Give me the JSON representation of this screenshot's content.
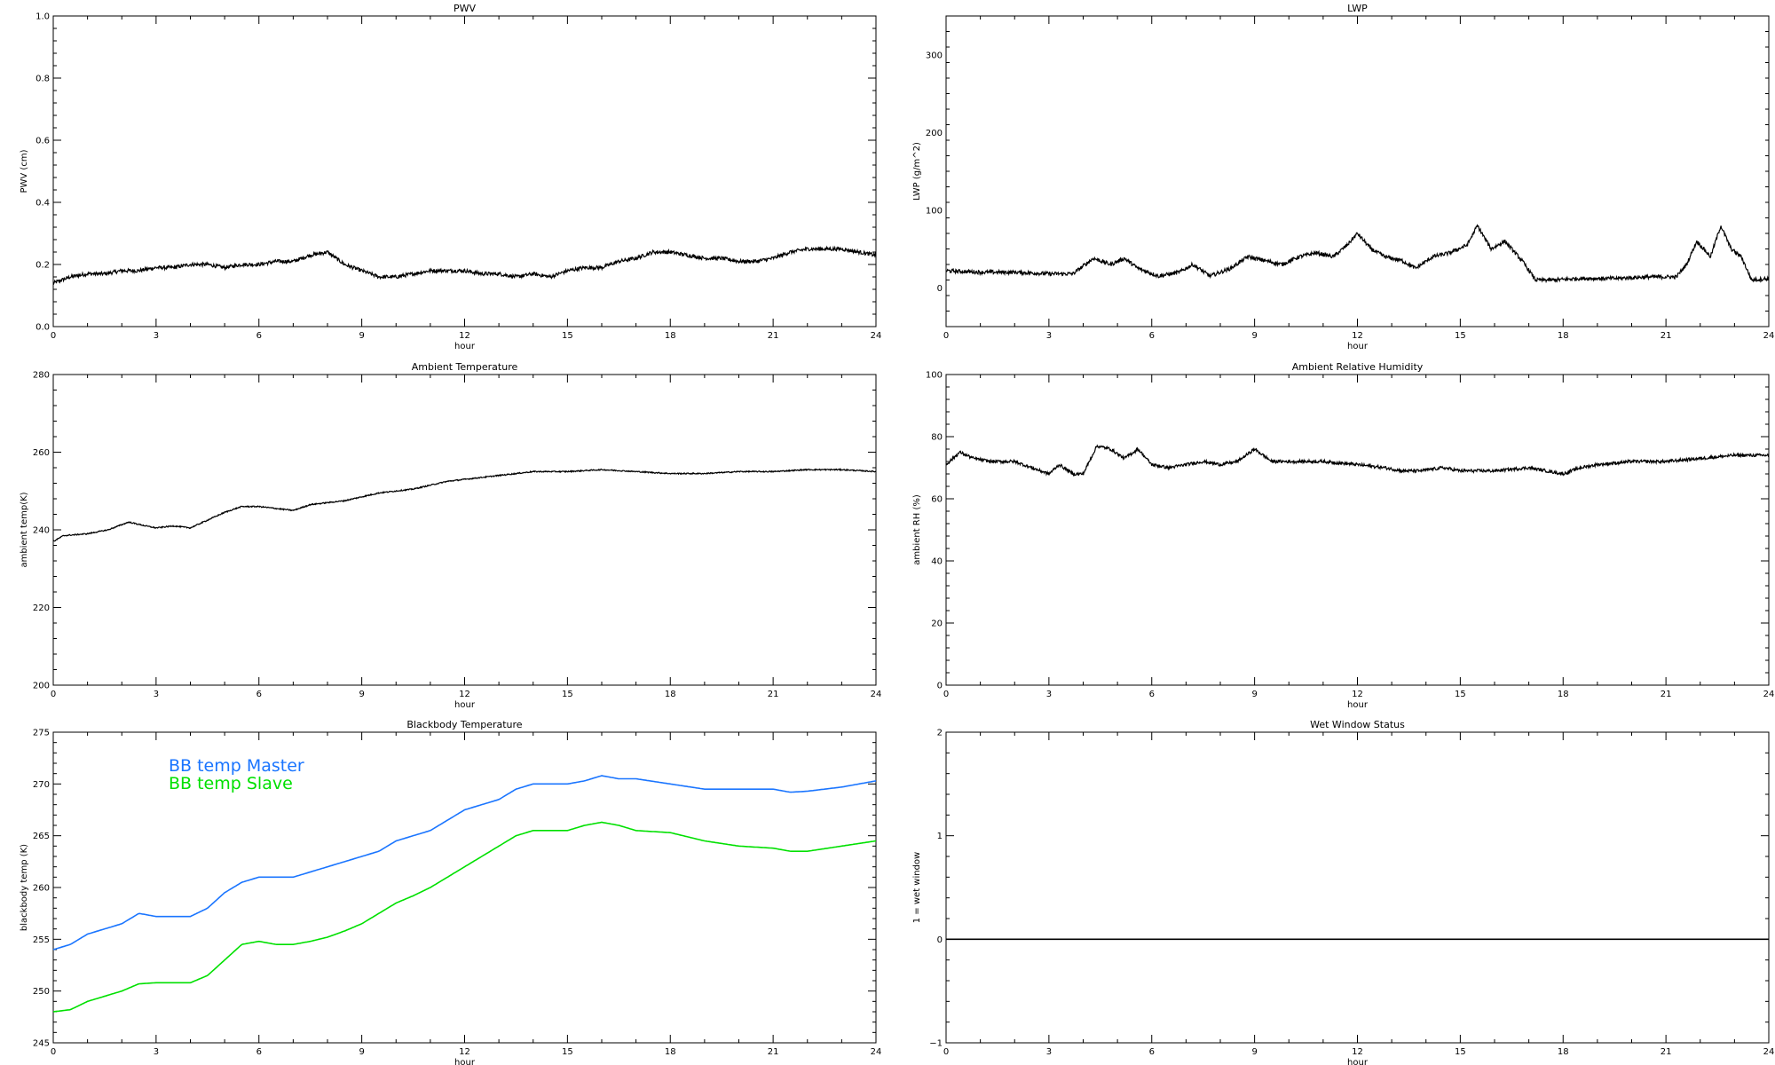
{
  "chart_data": [
    {
      "type": "line",
      "title": "PWV",
      "xlabel": "hour",
      "ylabel": "PWV (cm)",
      "xlim": [
        0,
        24
      ],
      "ylim": [
        0,
        1.0
      ],
      "xticks": [
        0,
        3,
        6,
        9,
        12,
        15,
        18,
        21,
        24
      ],
      "xtick_labels": [
        "0",
        "3",
        "6",
        "9",
        "12",
        "15",
        "18",
        "21",
        "24"
      ],
      "yticks": [
        0,
        0.2,
        0.4,
        0.6,
        0.8,
        1.0
      ],
      "ytick_labels": [
        "0.0",
        "0.2",
        "0.4",
        "0.6",
        "0.8",
        "1.0"
      ],
      "series": [
        {
          "color": "#000000",
          "noise": 0.006,
          "x": [
            0,
            0.5,
            1,
            1.5,
            2,
            2.5,
            3,
            3.5,
            4,
            4.5,
            5,
            5.5,
            6,
            6.5,
            7,
            7.5,
            8,
            8.5,
            9,
            9.5,
            10,
            10.5,
            11,
            11.5,
            12,
            12.5,
            13,
            13.5,
            14,
            14.5,
            15,
            15.5,
            16,
            16.5,
            17,
            17.5,
            18,
            18.5,
            19,
            19.5,
            20,
            20.5,
            21,
            21.5,
            22,
            22.5,
            23,
            23.5,
            24
          ],
          "y": [
            0.14,
            0.16,
            0.17,
            0.17,
            0.18,
            0.18,
            0.19,
            0.19,
            0.2,
            0.2,
            0.19,
            0.2,
            0.2,
            0.21,
            0.21,
            0.23,
            0.24,
            0.2,
            0.18,
            0.16,
            0.16,
            0.17,
            0.18,
            0.18,
            0.18,
            0.17,
            0.17,
            0.16,
            0.17,
            0.16,
            0.18,
            0.19,
            0.19,
            0.21,
            0.22,
            0.24,
            0.24,
            0.23,
            0.22,
            0.22,
            0.21,
            0.21,
            0.22,
            0.24,
            0.25,
            0.25,
            0.25,
            0.24,
            0.23
          ]
        }
      ]
    },
    {
      "type": "line",
      "title": "LWP",
      "xlabel": "hour",
      "ylabel": "LWP (g/m^2)",
      "xlim": [
        0,
        24
      ],
      "ylim": [
        -50,
        350
      ],
      "xticks": [
        0,
        3,
        6,
        9,
        12,
        15,
        18,
        21,
        24
      ],
      "xtick_labels": [
        "0",
        "3",
        "6",
        "9",
        "12",
        "15",
        "18",
        "21",
        "24"
      ],
      "yticks": [
        0,
        100,
        200,
        300
      ],
      "ytick_labels": [
        "0",
        "100",
        "200",
        "300"
      ],
      "series": [
        {
          "color": "#000000",
          "noise": 2.5,
          "x": [
            0,
            1,
            2,
            3,
            3.7,
            4.3,
            4.8,
            5.2,
            5.6,
            6.2,
            6.8,
            7.2,
            7.7,
            8.3,
            8.8,
            9.3,
            9.8,
            10.3,
            10.8,
            11.3,
            11.7,
            12.0,
            12.4,
            12.8,
            13.3,
            13.7,
            14.2,
            14.7,
            15.2,
            15.5,
            15.9,
            16.3,
            16.8,
            17.2,
            17.7,
            18.5,
            19.5,
            20.5,
            21.3,
            21.6,
            21.9,
            22.3,
            22.6,
            22.9,
            23.2,
            23.5,
            24
          ],
          "y": [
            22,
            20,
            20,
            18,
            18,
            38,
            30,
            38,
            25,
            15,
            20,
            30,
            15,
            25,
            40,
            35,
            30,
            40,
            45,
            40,
            55,
            70,
            50,
            40,
            35,
            25,
            40,
            45,
            55,
            80,
            50,
            60,
            35,
            10,
            10,
            12,
            12,
            14,
            14,
            30,
            60,
            40,
            80,
            50,
            40,
            10,
            12
          ]
        }
      ]
    },
    {
      "type": "line",
      "title": "Ambient Temperature",
      "xlabel": "hour",
      "ylabel": "ambient temp(K)",
      "xlim": [
        0,
        24
      ],
      "ylim": [
        200,
        280
      ],
      "xticks": [
        0,
        3,
        6,
        9,
        12,
        15,
        18,
        21,
        24
      ],
      "xtick_labels": [
        "0",
        "3",
        "6",
        "9",
        "12",
        "15",
        "18",
        "21",
        "24"
      ],
      "yticks": [
        200,
        220,
        240,
        260,
        280
      ],
      "ytick_labels": [
        "200",
        "220",
        "240",
        "260",
        "280"
      ],
      "series": [
        {
          "color": "#000000",
          "noise": 0.15,
          "x": [
            0,
            0.3,
            1,
            1.6,
            2.2,
            2.7,
            3,
            3.5,
            4,
            4.5,
            5,
            5.5,
            6,
            6.5,
            7,
            7.5,
            8,
            8.5,
            9,
            9.5,
            10,
            10.5,
            11,
            11.5,
            12,
            13,
            14,
            15,
            16,
            17,
            18,
            19,
            20,
            21,
            22,
            23,
            24
          ],
          "y": [
            237,
            238.5,
            239,
            240,
            242,
            241,
            240.5,
            241,
            240.5,
            242.5,
            244.5,
            246,
            246,
            245.5,
            245,
            246.5,
            247,
            247.5,
            248.5,
            249.5,
            250,
            250.5,
            251.5,
            252.5,
            253,
            254,
            255,
            255,
            255.5,
            255,
            254.5,
            254.5,
            255,
            255,
            255.5,
            255.5,
            255
          ]
        }
      ]
    },
    {
      "type": "line",
      "title": "Ambient Relative Humidity",
      "xlabel": "hour",
      "ylabel": "ambient RH (%)",
      "xlim": [
        0,
        24
      ],
      "ylim": [
        0,
        100
      ],
      "xticks": [
        0,
        3,
        6,
        9,
        12,
        15,
        18,
        21,
        24
      ],
      "xtick_labels": [
        "0",
        "3",
        "6",
        "9",
        "12",
        "15",
        "18",
        "21",
        "24"
      ],
      "yticks": [
        0,
        20,
        40,
        60,
        80,
        100
      ],
      "ytick_labels": [
        "0",
        "20",
        "40",
        "60",
        "80",
        "100"
      ],
      "series": [
        {
          "color": "#000000",
          "noise": 0.5,
          "x": [
            0,
            0.4,
            0.8,
            1.3,
            2,
            2.5,
            3,
            3.3,
            3.7,
            4,
            4.4,
            4.8,
            5.2,
            5.6,
            6,
            6.5,
            7,
            7.5,
            8,
            8.5,
            9,
            9.5,
            10,
            11,
            12,
            12.8,
            13.3,
            13.8,
            14.5,
            15,
            16,
            17,
            18,
            18.5,
            19,
            20,
            21,
            22,
            23,
            24
          ],
          "y": [
            71,
            75,
            73,
            72,
            72,
            70,
            68,
            71,
            68,
            68,
            77,
            76,
            73,
            76,
            71,
            70,
            71,
            72,
            71,
            72,
            76,
            72,
            72,
            72,
            71,
            70,
            69,
            69,
            70,
            69,
            69,
            70,
            68,
            70,
            71,
            72,
            72,
            73,
            74,
            74
          ]
        }
      ]
    },
    {
      "type": "line",
      "title": "Blackbody Temperature",
      "xlabel": "hour",
      "ylabel": "blackbody temp (K)",
      "xlim": [
        0,
        24
      ],
      "ylim": [
        245,
        275
      ],
      "xticks": [
        0,
        3,
        6,
        9,
        12,
        15,
        18,
        21,
        24
      ],
      "xtick_labels": [
        "0",
        "3",
        "6",
        "9",
        "12",
        "15",
        "18",
        "21",
        "24"
      ],
      "yticks": [
        245,
        250,
        255,
        260,
        265,
        270,
        275
      ],
      "ytick_labels": [
        "245",
        "250",
        "255",
        "260",
        "265",
        "270",
        "275"
      ],
      "legend": "top-left",
      "series": [
        {
          "name": "BB temp Master",
          "color": "#1a75ff",
          "noise": 0,
          "x": [
            0,
            0.5,
            1,
            1.5,
            2,
            2.5,
            3,
            3.5,
            4,
            4.5,
            5,
            5.5,
            6,
            6.5,
            7,
            7.5,
            8,
            8.5,
            9,
            9.5,
            10,
            10.5,
            11,
            11.5,
            12,
            12.5,
            13,
            13.5,
            14,
            15,
            15.5,
            16,
            16.5,
            17,
            18,
            19,
            20,
            21,
            21.5,
            22,
            23,
            24
          ],
          "y": [
            254,
            254.5,
            255.5,
            256,
            256.5,
            257.5,
            257.2,
            257.2,
            257.2,
            258,
            259.5,
            260.5,
            261,
            261,
            261,
            261.5,
            262,
            262.5,
            263,
            263.5,
            264.5,
            265,
            265.5,
            266.5,
            267.5,
            268,
            268.5,
            269.5,
            270,
            270,
            270.3,
            270.8,
            270.5,
            270.5,
            270,
            269.5,
            269.5,
            269.5,
            269.2,
            269.3,
            269.7,
            270.3
          ]
        },
        {
          "name": "BB temp Slave",
          "color": "#00e000",
          "noise": 0,
          "x": [
            0,
            0.5,
            1,
            1.5,
            2,
            2.5,
            3,
            3.5,
            4,
            4.5,
            5,
            5.5,
            6,
            6.5,
            7,
            7.5,
            8,
            8.5,
            9,
            9.5,
            10,
            10.5,
            11,
            11.5,
            12,
            12.5,
            13,
            13.5,
            14,
            15,
            15.5,
            16,
            16.5,
            17,
            18,
            19,
            20,
            21,
            21.5,
            22,
            23,
            24
          ],
          "y": [
            248,
            248.2,
            249,
            249.5,
            250,
            250.7,
            250.8,
            250.8,
            250.8,
            251.5,
            253,
            254.5,
            254.8,
            254.5,
            254.5,
            254.8,
            255.2,
            255.8,
            256.5,
            257.5,
            258.5,
            259.2,
            260,
            261,
            262,
            263,
            264,
            265,
            265.5,
            265.5,
            266,
            266.3,
            266,
            265.5,
            265.3,
            264.5,
            264,
            263.8,
            263.5,
            263.5,
            264,
            264.5
          ]
        }
      ]
    },
    {
      "type": "line",
      "title": "Wet Window Status",
      "xlabel": "hour",
      "ylabel": "1 = wet window",
      "xlim": [
        0,
        24
      ],
      "ylim": [
        -1,
        2
      ],
      "xticks": [
        0,
        3,
        6,
        9,
        12,
        15,
        18,
        21,
        24
      ],
      "xtick_labels": [
        "0",
        "3",
        "6",
        "9",
        "12",
        "15",
        "18",
        "21",
        "24"
      ],
      "yticks": [
        -1,
        0,
        1,
        2
      ],
      "ytick_labels": [
        "−1",
        "0",
        "1",
        "2"
      ],
      "series": [
        {
          "color": "#000000",
          "noise": 0,
          "x": [
            0,
            24
          ],
          "y": [
            0,
            0
          ]
        }
      ]
    }
  ]
}
